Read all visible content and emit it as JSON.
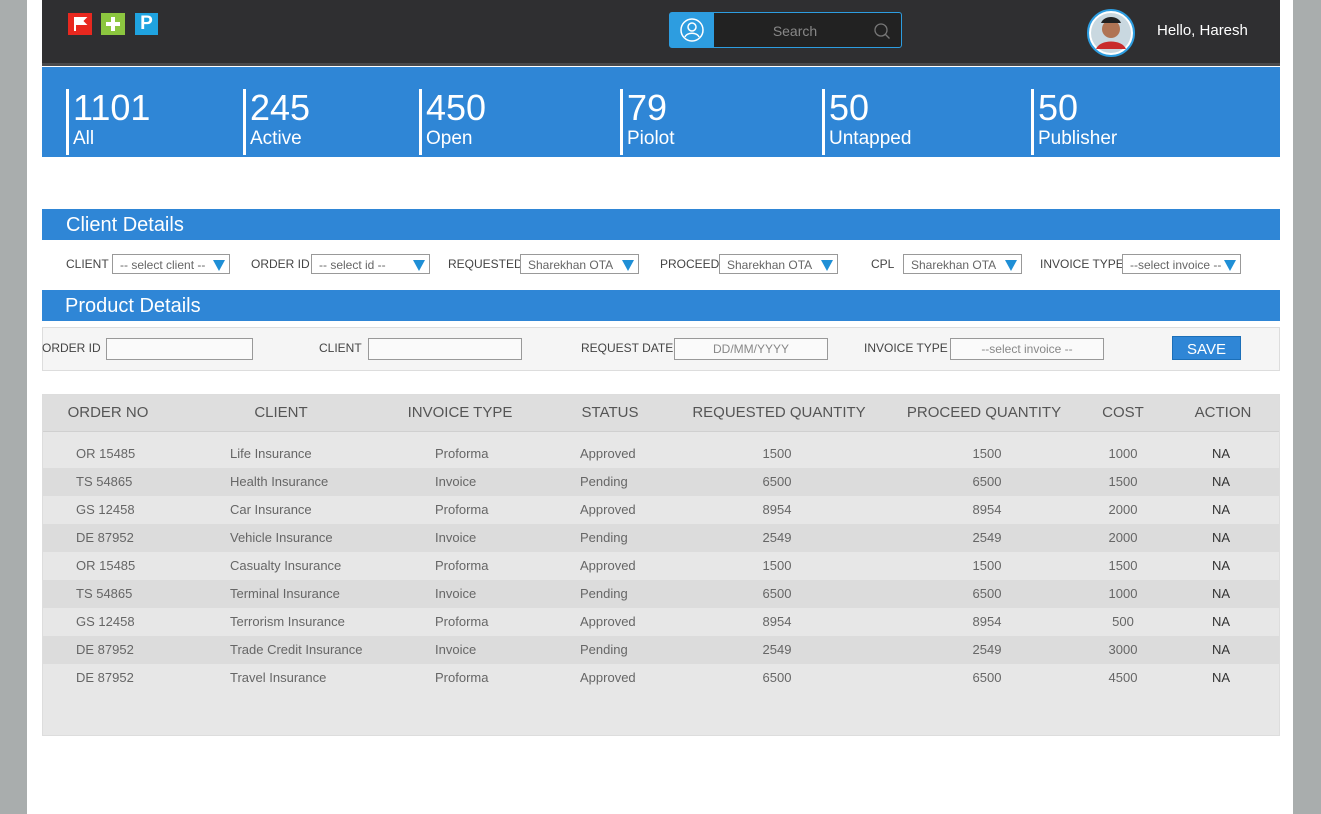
{
  "header": {
    "app_icon_label": "P",
    "search_placeholder": "Search",
    "greeting": "Hello, Haresh"
  },
  "stats": [
    {
      "value": 1101,
      "label": "All"
    },
    {
      "value": 245,
      "label": "Active"
    },
    {
      "value": 450,
      "label": "Open"
    },
    {
      "value": 79,
      "label": "Piolot"
    },
    {
      "value": 50,
      "label": "Untapped"
    },
    {
      "value": 50,
      "label": "Publisher"
    }
  ],
  "client_details": {
    "title": "Client Details",
    "fields": [
      {
        "label": "CLIENT",
        "placeholder": "-- select client --"
      },
      {
        "label": "ORDER ID",
        "placeholder": "-- select id --"
      },
      {
        "label": "REQUESTED",
        "placeholder": "Sharekhan OTA"
      },
      {
        "label": "PROCEED",
        "placeholder": "Sharekhan OTA"
      },
      {
        "label": "CPL",
        "placeholder": "Sharekhan OTA"
      },
      {
        "label": "INVOICE TYPE",
        "placeholder": "--select invoice --"
      }
    ]
  },
  "product_details": {
    "title": "Product Details",
    "fields": [
      {
        "label": "ORDER ID"
      },
      {
        "label": "CLIENT"
      },
      {
        "label": "REQUEST DATE",
        "placeholder": "DD/MM/YYYY"
      },
      {
        "label": "INVOICE TYPE",
        "placeholder": "--select invoice --"
      }
    ],
    "save": "SAVE"
  },
  "table": {
    "columns": [
      "ORDER NO",
      "CLIENT",
      "INVOICE TYPE",
      "STATUS",
      "REQUESTED QUANTITY",
      "PROCEED QUANTITY",
      "COST",
      "ACTION"
    ],
    "rows": [
      [
        "OR 15485",
        "Life Insurance",
        "Proforma",
        "Approved",
        1500,
        1500,
        1000,
        "NA"
      ],
      [
        "TS 54865",
        "Health Insurance",
        "Invoice",
        "Pending",
        6500,
        6500,
        1500,
        "NA"
      ],
      [
        "GS 12458",
        "Car Insurance",
        "Proforma",
        "Approved",
        8954,
        8954,
        2000,
        "NA"
      ],
      [
        "DE 87952",
        "Vehicle Insurance",
        "Invoice",
        "Pending",
        2549,
        2549,
        2000,
        "NA"
      ],
      [
        "OR 15485",
        "Casualty Insurance",
        "Proforma",
        "Approved",
        1500,
        1500,
        1500,
        "NA"
      ],
      [
        "TS 54865",
        "Terminal Insurance",
        "Invoice",
        "Pending",
        6500,
        6500,
        1000,
        "NA"
      ],
      [
        "GS 12458",
        "Terrorism Insurance",
        "Proforma",
        "Approved",
        8954,
        8954,
        500,
        "NA"
      ],
      [
        "DE 87952",
        "Trade Credit Insurance",
        "Invoice",
        "Pending",
        2549,
        2549,
        3000,
        "NA"
      ],
      [
        "DE 87952",
        "Travel Insurance",
        "Proforma",
        "Approved",
        6500,
        6500,
        4500,
        "NA"
      ]
    ]
  }
}
